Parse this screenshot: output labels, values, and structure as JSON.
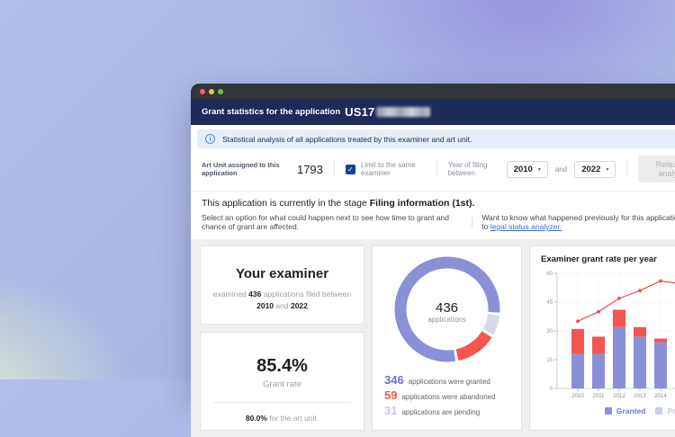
{
  "window": {
    "chrome": {
      "buttons": [
        "close",
        "minimize",
        "maximize"
      ]
    },
    "header": {
      "title_prefix": "Grant statistics for the application",
      "app_number_visible": "US17",
      "app_number_redacted": true
    },
    "banner": {
      "icon": "info-icon",
      "text": "Statistical analysis of all applications treated by this examiner and art unit."
    },
    "toolbar": {
      "art_unit_label": "Art Unit assigned to this application",
      "art_unit_value": "1793",
      "checkbox_checked": true,
      "checkbox_glyph": "✓",
      "checkbox_label": "Limit to the same examiner",
      "year_filter_label": "Year of filing between",
      "year_from": "2010",
      "and_label": "and",
      "year_to": "2022",
      "caret_glyph": "▾",
      "relaunch_button": "Relaunch analysis"
    },
    "stage": {
      "line1_prefix": "This application is currently in the stage",
      "line1_bold": "Filing information (1st).",
      "line2_left": "Select an option for what could happen next to see how time to grant and chance of grant are affected.",
      "line2_right_prefix": "Want to know what happened previously for this application? Go to",
      "line2_link": "legal status analyzer."
    },
    "cards": {
      "examiner": {
        "title": "Your examiner",
        "sub_part1": "examined",
        "sub_count": "436",
        "sub_part2": "applications filed between",
        "sub_year_from": "2010",
        "sub_part3": "and",
        "sub_year_to": "2022"
      },
      "grant_rate": {
        "value": "85.4%",
        "label": "Grant rate",
        "art_unit_value": "80.0%",
        "art_unit_suffix": "for the art unit."
      },
      "donut": {
        "center_value": "436",
        "center_label": "applications",
        "legend": [
          {
            "value": "346",
            "text": "applications were granted"
          },
          {
            "value": "59",
            "text": "applications were abandoned"
          },
          {
            "value": "31",
            "text": "applications are pending"
          }
        ]
      },
      "per_year": {
        "title": "Examiner grant rate per year",
        "legend": [
          {
            "label": "Granted",
            "color": "#8a90d8"
          },
          {
            "label": "Pending",
            "color": "#c9cee8"
          }
        ]
      }
    }
  },
  "colors": {
    "titlebar_navy": "#1d2a5a",
    "banner_blue_bg": "#e6eef9",
    "granted_purple": "#8a90d8",
    "abandoned_red": "#f4554e",
    "pending_lavender": "#d6daeb",
    "line_red": "#e4544c",
    "link_blue": "#3b6cd4"
  },
  "chart_data": [
    {
      "type": "pie",
      "subtype": "donut",
      "center_text": "436 applications",
      "labels": [
        "granted",
        "pending",
        "abandoned"
      ],
      "values": [
        346,
        31,
        59
      ],
      "colors": [
        "#8a90d8",
        "#d6daeb",
        "#f4554e"
      ],
      "start_angle_clockwise_from_top": 171
    },
    {
      "type": "bar",
      "subtype": "stacked-bars-with-line",
      "title": "Examiner grant rate per year",
      "categories": [
        "2010",
        "2011",
        "2012",
        "2013",
        "2014"
      ],
      "series": [
        {
          "name": "Granted",
          "color": "#8a90d8",
          "values": [
            18,
            18,
            32,
            27,
            24
          ]
        },
        {
          "name": "",
          "color": "#f4554e",
          "values": [
            13,
            9,
            9,
            5,
            2
          ]
        }
      ],
      "line": {
        "color": "#e4544c",
        "values": [
          35,
          40,
          47,
          51,
          56
        ],
        "extends_past_right_edge": true
      },
      "ylim": [
        0,
        60
      ],
      "yticks": [
        0,
        15,
        30,
        45,
        60
      ],
      "grid": "dotted",
      "legend_position": "bottom-right"
    }
  ]
}
